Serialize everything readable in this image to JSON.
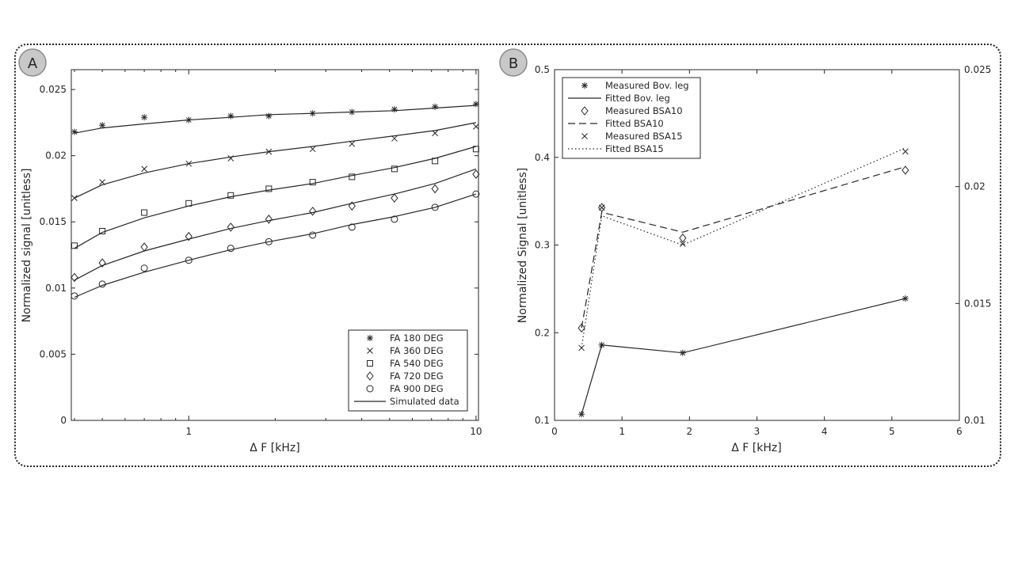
{
  "chart_data": [
    {
      "type": "line",
      "panel_label": "A",
      "xlabel": "Δ F [kHz]",
      "ylabel": "Normalized signal [unitless]",
      "xscale": "log",
      "xlim": [
        0.39,
        10.2
      ],
      "ylim": [
        0,
        0.0265
      ],
      "x_ticks": [
        1,
        10
      ],
      "x_tick_labels": [
        "1",
        "10"
      ],
      "y_ticks": [
        0,
        0.005,
        0.01,
        0.015,
        0.02,
        0.025
      ],
      "y_tick_labels": [
        "0",
        "0.005",
        "0.01",
        "0.015",
        "0.02",
        "0.025"
      ],
      "legend_position": "bottom-right",
      "legend_entries": [
        "FA 180 DEG",
        "FA 360 DEG",
        "FA 540 DEG",
        "FA 720 DEG",
        "FA 900 DEG",
        "Simulated data"
      ],
      "x": [
        0.4,
        0.5,
        0.7,
        1.0,
        1.4,
        1.9,
        2.7,
        3.7,
        5.2,
        7.2,
        10.0
      ],
      "series": [
        {
          "name": "FA 180 DEG",
          "marker": "asterisk",
          "values": [
            0.0218,
            0.0223,
            0.0229,
            0.0227,
            0.023,
            0.023,
            0.0232,
            0.0233,
            0.0235,
            0.0237,
            0.0239
          ],
          "fit": [
            0.0217,
            0.0221,
            0.0224,
            0.0227,
            0.0229,
            0.0231,
            0.0232,
            0.0233,
            0.0234,
            0.0236,
            0.0238
          ]
        },
        {
          "name": "FA 360 DEG",
          "marker": "x",
          "values": [
            0.0168,
            0.018,
            0.019,
            0.0194,
            0.0198,
            0.0203,
            0.0205,
            0.0209,
            0.0213,
            0.0217,
            0.0222
          ],
          "fit": [
            0.0168,
            0.0178,
            0.0187,
            0.0194,
            0.0199,
            0.0203,
            0.0207,
            0.0211,
            0.0215,
            0.0219,
            0.0225
          ]
        },
        {
          "name": "FA 540 DEG",
          "marker": "square",
          "values": [
            0.0132,
            0.0143,
            0.0157,
            0.0164,
            0.017,
            0.0175,
            0.018,
            0.0184,
            0.019,
            0.0196,
            0.0205
          ],
          "fit": [
            0.013,
            0.0142,
            0.0153,
            0.0162,
            0.0169,
            0.0174,
            0.0179,
            0.0185,
            0.0191,
            0.0198,
            0.0207
          ]
        },
        {
          "name": "FA 720 DEG",
          "marker": "diamond",
          "values": [
            0.0108,
            0.0119,
            0.0131,
            0.0139,
            0.0146,
            0.0152,
            0.0158,
            0.0162,
            0.0168,
            0.0175,
            0.0186
          ],
          "fit": [
            0.0106,
            0.0117,
            0.0128,
            0.0137,
            0.0145,
            0.0151,
            0.0157,
            0.0164,
            0.0171,
            0.0179,
            0.019
          ]
        },
        {
          "name": "FA 900 DEG",
          "marker": "circle",
          "values": [
            0.0094,
            0.0103,
            0.0115,
            0.0121,
            0.013,
            0.0135,
            0.014,
            0.0146,
            0.0152,
            0.0161,
            0.0171
          ],
          "fit": [
            0.0093,
            0.0102,
            0.0112,
            0.0121,
            0.0129,
            0.0135,
            0.0141,
            0.0148,
            0.0154,
            0.0161,
            0.0171
          ]
        }
      ]
    },
    {
      "type": "line",
      "panel_label": "B",
      "xlabel": "Δ F [kHz]",
      "ylabel": "Normalized Signal [unitless]",
      "xscale": "linear",
      "xlim": [
        0,
        6
      ],
      "ylim": [
        0.1,
        0.5
      ],
      "y2lim": [
        0.01,
        0.025
      ],
      "x_ticks": [
        0,
        1,
        2,
        3,
        4,
        5,
        6
      ],
      "x_tick_labels": [
        "0",
        "1",
        "2",
        "3",
        "4",
        "5",
        "6"
      ],
      "y_ticks": [
        0.1,
        0.2,
        0.3,
        0.4,
        0.5
      ],
      "y_tick_labels": [
        "0.1",
        "0.2",
        "0.3",
        "0.4",
        "0.5"
      ],
      "y2_ticks": [
        0.01,
        0.015,
        0.02,
        0.025
      ],
      "y2_tick_labels": [
        "0.01",
        "0.015",
        "0.02",
        "0.025"
      ],
      "legend_position": "top-left",
      "legend_entries": [
        "Measured Bov. leg",
        "Fitted Bov. leg",
        "Measured BSA10",
        "Fitted BSA10",
        "Measured BSA15",
        "Fitted BSA15"
      ],
      "x": [
        0.4,
        0.7,
        1.9,
        5.2
      ],
      "series": [
        {
          "name": "Bov. leg",
          "marker": "asterisk",
          "line": "solid",
          "axis": "left",
          "measured": [
            0.107,
            0.186,
            0.177,
            0.239
          ],
          "fitted": [
            0.107,
            0.186,
            0.177,
            0.239
          ]
        },
        {
          "name": "BSA10",
          "marker": "diamond",
          "line": "dashed",
          "axis": "right",
          "measured": [
            0.01395,
            0.0191,
            0.0178,
            0.0207
          ],
          "fitted": [
            0.01395,
            0.0189,
            0.01805,
            0.02085
          ]
        },
        {
          "name": "BSA15",
          "marker": "x",
          "line": "dotted",
          "axis": "right",
          "measured": [
            0.0131,
            0.0191,
            0.01755,
            0.0215
          ],
          "fitted": [
            0.0131,
            0.01875,
            0.0175,
            0.02165
          ]
        }
      ]
    }
  ]
}
